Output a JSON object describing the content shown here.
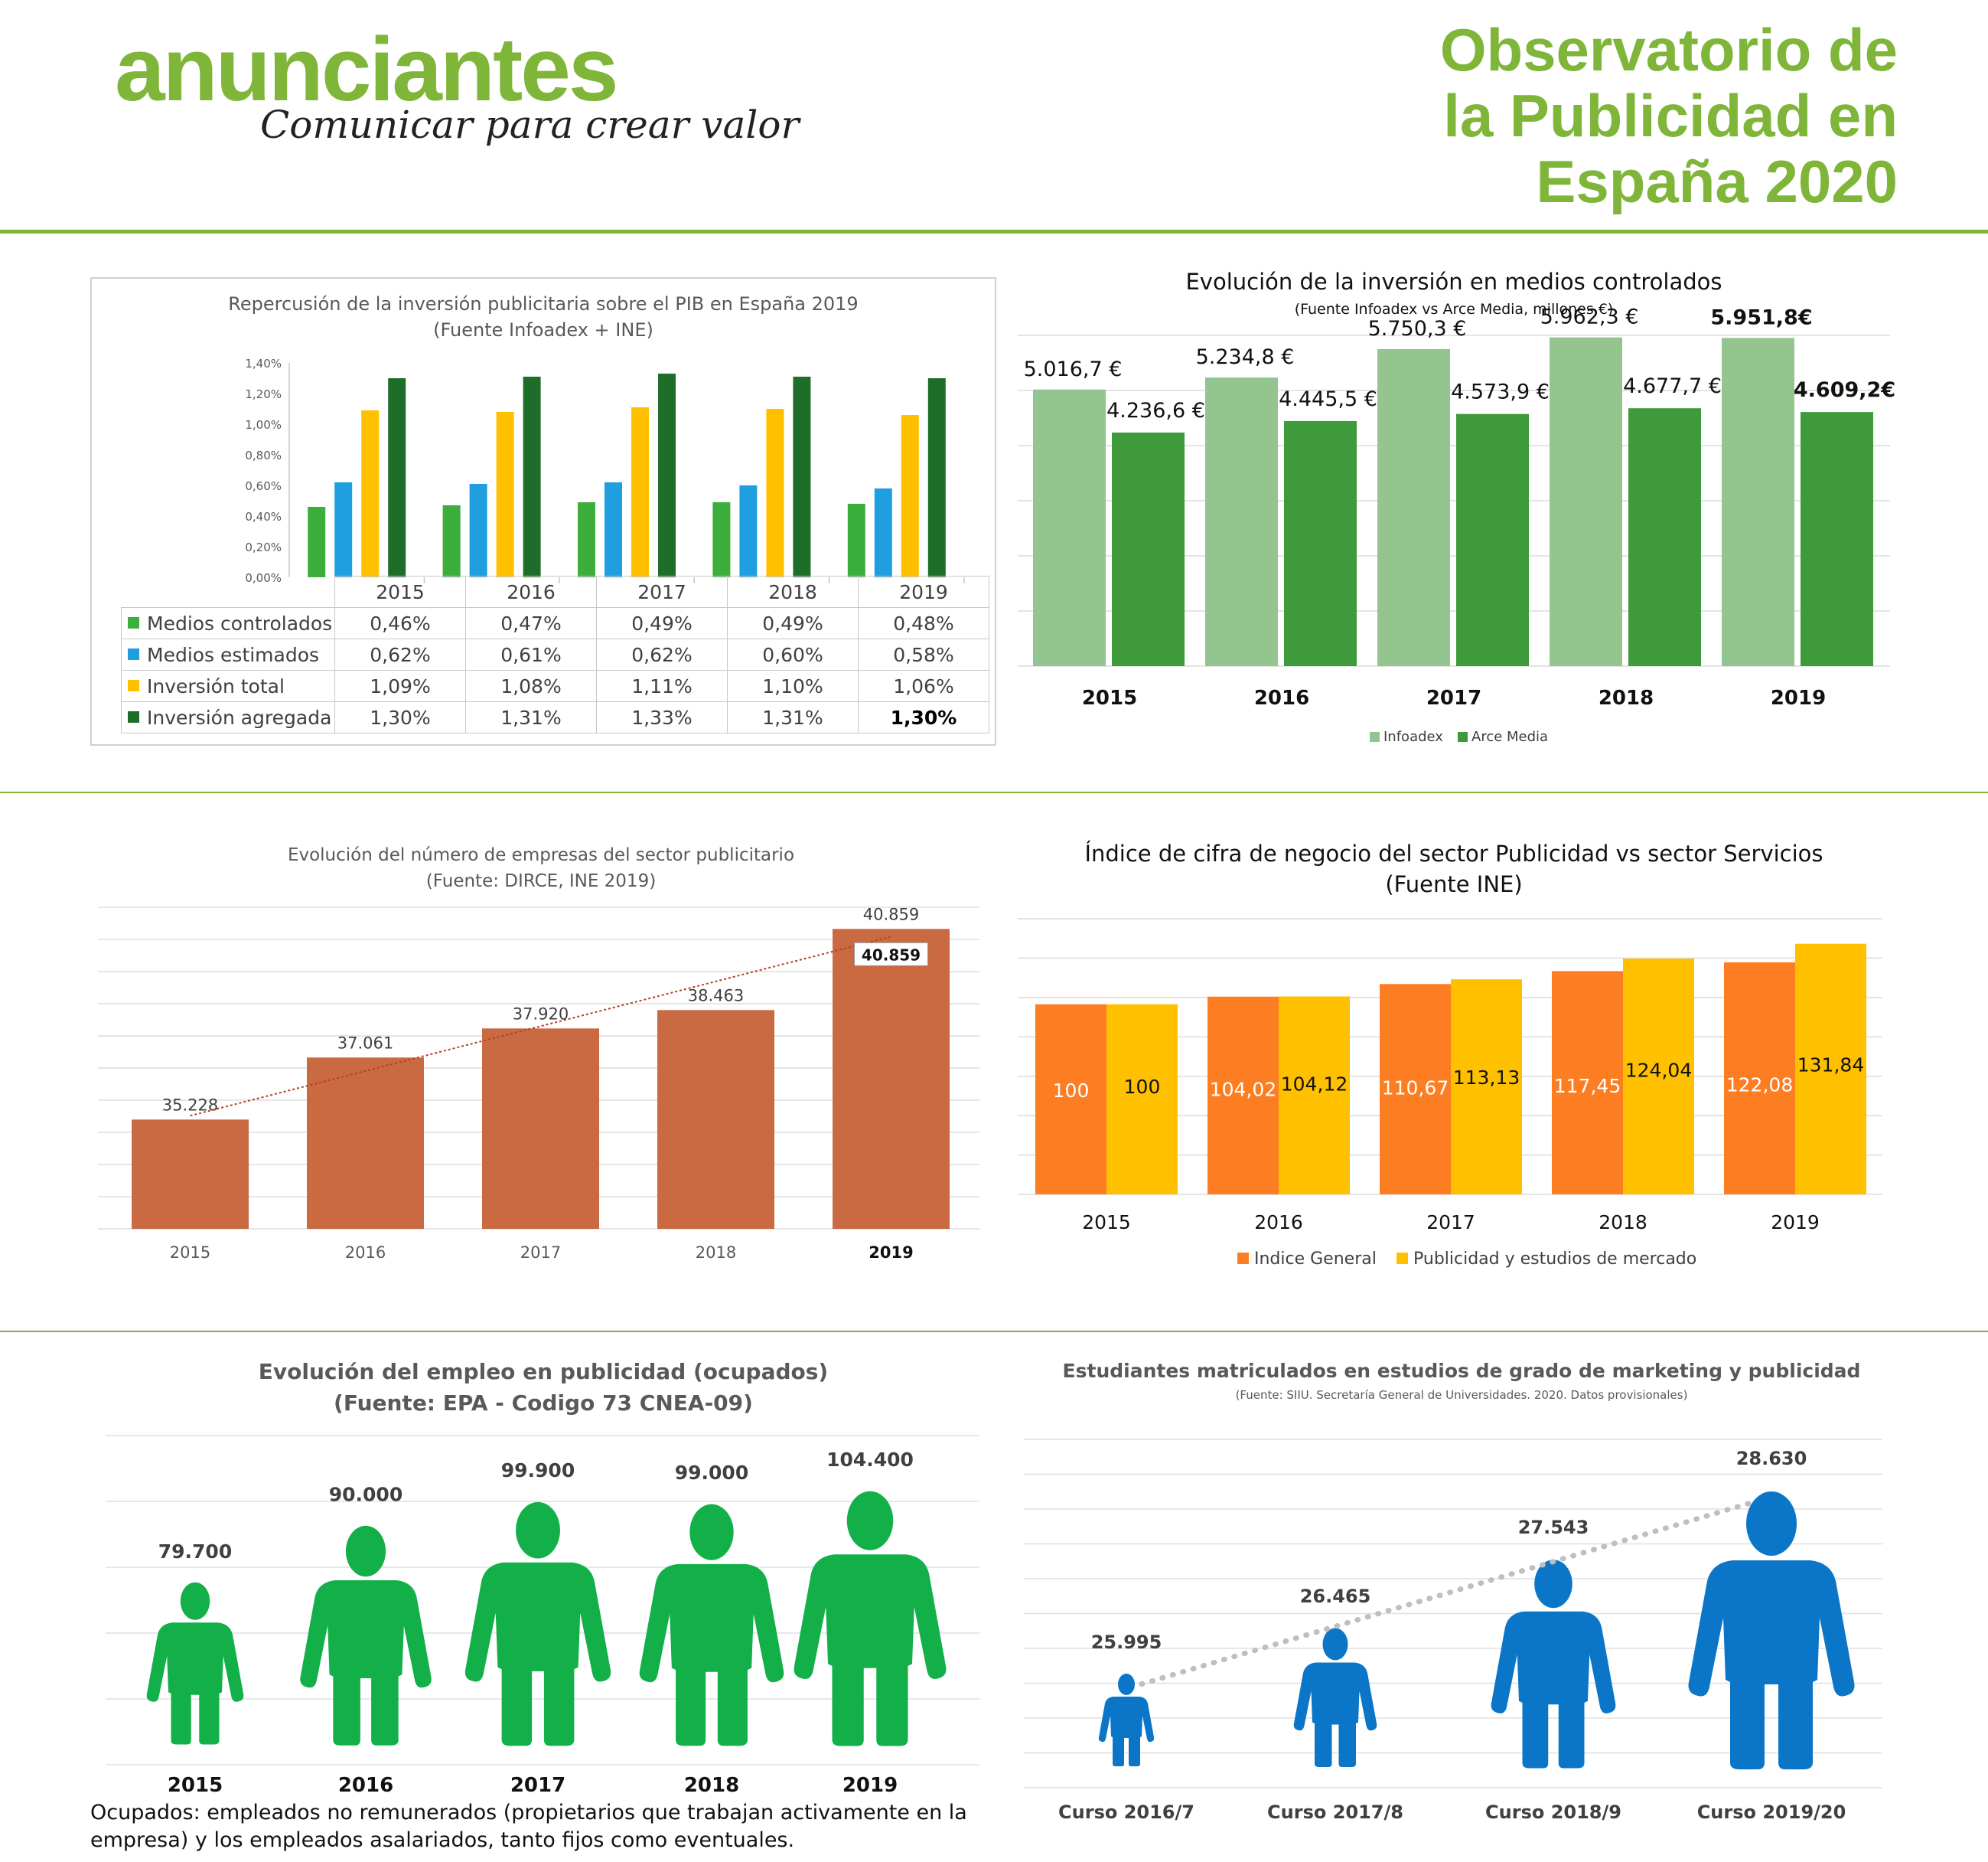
{
  "header": {
    "logo_text": "anunciantes",
    "logo_tagline": "Comunicar para crear valor",
    "title_lines": [
      "Observatorio de",
      "la Publicidad en",
      "España 2020"
    ]
  },
  "colors": {
    "brand_green": "#7fb539",
    "medios_controlados": "#3cae3c",
    "medios_estimados": "#1f9fe0",
    "inversion_total": "#ffc000",
    "inversion_agregada": "#1e6e2a",
    "infoadex": "#94c58e",
    "arce_media": "#3f9a3c",
    "empresas_bar": "#c96a43",
    "indice_general": "#fd7e22",
    "publicidad_estudios": "#ffc000",
    "empleo_figure": "#13b04a",
    "estudiantes_figure": "#0b76c8"
  },
  "chart_data": [
    {
      "type": "bar",
      "title": "Repercusión de la inversión publicitaria sobre el PIB en España 2019",
      "subtitle": "(Fuente Infoadex + INE)",
      "categories": [
        "2015",
        "2016",
        "2017",
        "2018",
        "2019"
      ],
      "series": [
        {
          "name": "Medios controlados",
          "values": [
            0.46,
            0.47,
            0.49,
            0.49,
            0.48
          ],
          "labels": [
            "0,46%",
            "0,47%",
            "0,49%",
            "0,49%",
            "0,48%"
          ]
        },
        {
          "name": "Medios estimados",
          "values": [
            0.62,
            0.61,
            0.62,
            0.6,
            0.58
          ],
          "labels": [
            "0,62%",
            "0,61%",
            "0,62%",
            "0,60%",
            "0,58%"
          ]
        },
        {
          "name": "Inversión total",
          "values": [
            1.09,
            1.08,
            1.11,
            1.1,
            1.06
          ],
          "labels": [
            "1,09%",
            "1,08%",
            "1,11%",
            "1,10%",
            "1,06%"
          ]
        },
        {
          "name": "Inversión agregada",
          "values": [
            1.3,
            1.31,
            1.33,
            1.31,
            1.3
          ],
          "labels": [
            "1,30%",
            "1,31%",
            "1,33%",
            "1,31%",
            "1,30%"
          ]
        }
      ],
      "ylim": [
        0,
        1.4
      ],
      "yticks": [
        "0,00%",
        "0,20%",
        "0,40%",
        "0,60%",
        "0,80%",
        "1,00%",
        "1,20%",
        "1,40%"
      ],
      "data_table": true
    },
    {
      "type": "bar",
      "title": "Evolución de la inversión en medios controlados",
      "subtitle": "(Fuente Infoadex vs Arce Media, millones €)",
      "categories": [
        "2015",
        "2016",
        "2017",
        "2018",
        "2019"
      ],
      "series": [
        {
          "name": "Infoadex",
          "values": [
            5016.7,
            5234.8,
            5750.3,
            5962.3,
            5951.8
          ],
          "labels": [
            "5.016,7 €",
            "5.234,8 €",
            "5.750,3 €",
            "5.962,3 €",
            "5.951,8€"
          ]
        },
        {
          "name": "Arce Media",
          "values": [
            4236.6,
            4445.5,
            4573.9,
            4677.7,
            4609.2
          ],
          "labels": [
            "4.236,6 €",
            "4.445,5 €",
            "4.573,9 €",
            "4.677,7 €",
            "4.609,2€"
          ]
        }
      ],
      "ylim": [
        0,
        6500
      ],
      "grid": true,
      "legend": "bottom"
    },
    {
      "type": "bar",
      "title": "Evolución del número de empresas del sector publicitario",
      "subtitle": "(Fuente: DIRCE, INE 2019)",
      "categories": [
        "2015",
        "2016",
        "2017",
        "2018",
        "2019"
      ],
      "values": [
        35228,
        37061,
        37920,
        38463,
        40859
      ],
      "labels": [
        "35.228",
        "37.061",
        "37.920",
        "38.463",
        "40.859"
      ],
      "highlight_label": "40.859",
      "trendline": "linear",
      "ylim": [
        32000,
        41500
      ],
      "grid": true
    },
    {
      "type": "bar",
      "title": "Índice de cifra de negocio del sector Publicidad  vs sector Servicios",
      "subtitle": "(Fuente INE)",
      "categories": [
        "2015",
        "2016",
        "2017",
        "2018",
        "2019"
      ],
      "series": [
        {
          "name": "Indice General",
          "values": [
            100,
            104.02,
            110.67,
            117.45,
            122.08
          ],
          "labels": [
            "100",
            "104,02",
            "110,67",
            "117,45",
            "122,08"
          ]
        },
        {
          "name": "Publicidad y estudios de mercado",
          "values": [
            100,
            104.12,
            113.13,
            124.04,
            131.84
          ],
          "labels": [
            "100",
            "104,12",
            "113,13",
            "124,04",
            "131,84"
          ]
        }
      ],
      "ylim": [
        0,
        145
      ],
      "grid": true,
      "legend": "bottom"
    },
    {
      "type": "bar",
      "title": "Evolución del empleo en publicidad (ocupados)",
      "subtitle": "(Fuente: EPA - Codigo 73 CNEA-09)",
      "categories": [
        "2015",
        "2016",
        "2017",
        "2018",
        "2019"
      ],
      "values": [
        79700,
        90000,
        99900,
        99000,
        104400
      ],
      "labels": [
        "79.700",
        "90.000",
        "99.900",
        "99.000",
        "104.400"
      ],
      "marks": "person-pictogram",
      "grid": true
    },
    {
      "type": "bar",
      "title": "Estudiantes matriculados en estudios de grado de marketing y publicidad",
      "subtitle": "(Fuente: SIIU. Secretaría  General de Universidades. 2020. Datos provisionales)",
      "categories": [
        "Curso 2016/7",
        "Curso 2017/8",
        "Curso 2018/9",
        "Curso 2019/20"
      ],
      "values": [
        25995,
        26465,
        27543,
        28630
      ],
      "labels": [
        "25.995",
        "26.465",
        "27.543",
        "28.630"
      ],
      "marks": "person-pictogram",
      "trendline": "dotted",
      "grid": true
    }
  ],
  "note": "Ocupados: empleados no remunerados (propietarios que trabajan activamente en la empresa) y los empleados asalariados, tanto fijos como eventuales."
}
